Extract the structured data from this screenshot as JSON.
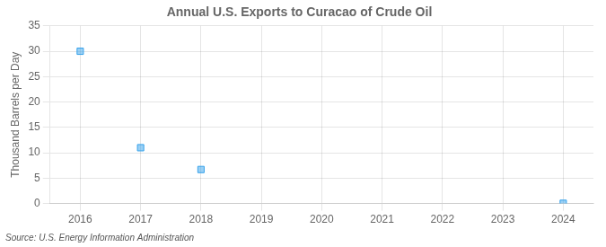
{
  "chart_data": {
    "type": "scatter",
    "title": "Annual U.S. Exports to Curacao of Crude Oil",
    "y_label": "Thousand Barrels per Day",
    "annotations": [
      "Source: U.S. Energy Information Administration"
    ],
    "x": [
      2016,
      2017,
      2018,
      2024
    ],
    "values": [
      30.0,
      11.0,
      6.7,
      0.05
    ],
    "marker": "square",
    "xlim": [
      2015.5,
      2024.5
    ],
    "xticks": [
      2016,
      2017,
      2018,
      2019,
      2020,
      2021,
      2022,
      2023,
      2024
    ],
    "ylim": [
      0,
      35
    ],
    "yticks": [
      0,
      5,
      10,
      15,
      20,
      25,
      30,
      35
    ],
    "grid": true
  }
}
